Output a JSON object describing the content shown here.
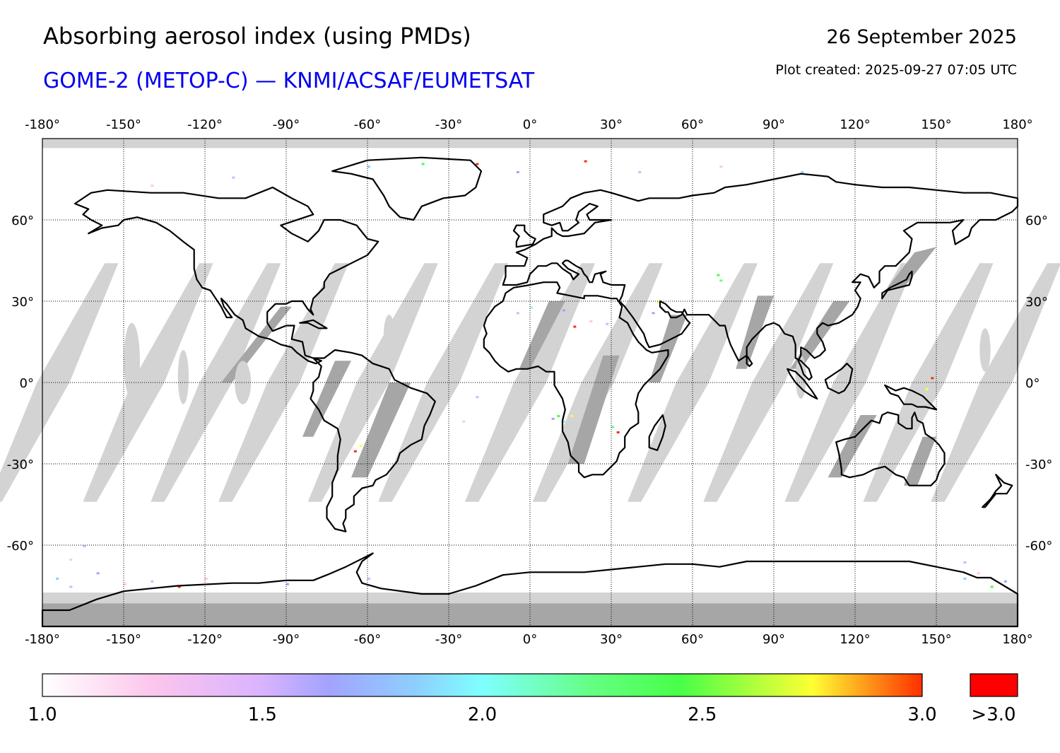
{
  "header": {
    "title": "Absorbing aerosol index (using PMDs)",
    "subtitle": "GOME-2 (METOP-C) — KNMI/ACSAF/EUMETSAT",
    "date": "26 September 2025",
    "plot_created": "Plot created: 2025-09-27 07:05 UTC"
  },
  "map": {
    "projection": "equirectangular",
    "lon_range": [
      -180,
      180
    ],
    "lat_range": [
      -90,
      90
    ],
    "lon_ticks": [
      -180,
      -150,
      -120,
      -90,
      -60,
      -30,
      0,
      30,
      60,
      90,
      120,
      150,
      180
    ],
    "lat_ticks": [
      60,
      30,
      0,
      -30,
      -60
    ],
    "lon_tick_labels": [
      "-180°",
      "-150°",
      "-120°",
      "-90°",
      "-60°",
      "-30°",
      "0°",
      "30°",
      "60°",
      "90°",
      "120°",
      "150°",
      "180°"
    ],
    "lat_tick_labels": [
      "60°",
      "30°",
      "0°",
      "-30°",
      "-60°"
    ],
    "colors": {
      "ocean_land_background": "#ffffff",
      "no_data_gap": "#d3d3d3",
      "no_data_land": "#a6a6a6",
      "coastline": "#000000",
      "grid": "#000000"
    },
    "swath_gap_centers_lon_at_equator": [
      -176,
      -141,
      -116,
      -91,
      -58,
      -32,
      0,
      25,
      60,
      88,
      118,
      147,
      172
    ]
  },
  "colorbar": {
    "range": [
      1.0,
      3.0
    ],
    "tick_values": [
      1.0,
      1.5,
      2.0,
      2.5,
      3.0
    ],
    "tick_labels": [
      "1.0",
      "1.5",
      "2.0",
      "2.5",
      "3.0"
    ],
    "overflow_label": ">3.0",
    "overflow_color": "#ff0000",
    "stops": [
      {
        "value": 1.0,
        "color": "#ffffff"
      },
      {
        "value": 1.25,
        "color": "#fcc6ec"
      },
      {
        "value": 1.5,
        "color": "#d9b3ff"
      },
      {
        "value": 1.65,
        "color": "#a3a3ff"
      },
      {
        "value": 1.85,
        "color": "#8ecfff"
      },
      {
        "value": 2.0,
        "color": "#7fffff"
      },
      {
        "value": 2.25,
        "color": "#64ff82"
      },
      {
        "value": 2.45,
        "color": "#48ff48"
      },
      {
        "value": 2.75,
        "color": "#ffff33"
      },
      {
        "value": 3.0,
        "color": "#ff3000"
      }
    ]
  }
}
